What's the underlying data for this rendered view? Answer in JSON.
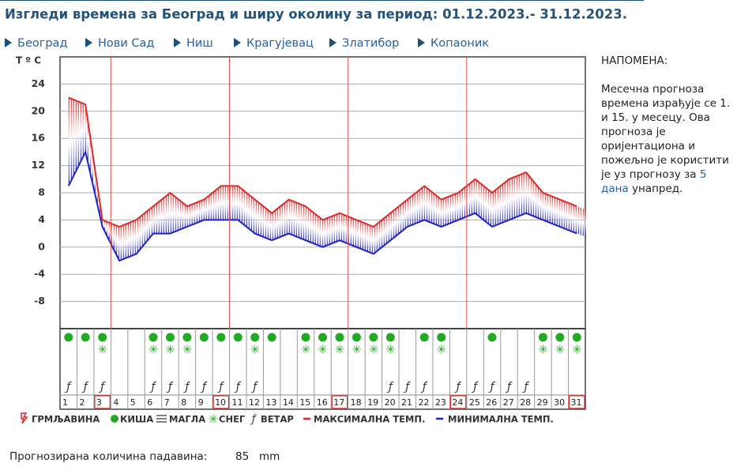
{
  "header": {
    "title": "Изгледи времена за Београд и ширу околину за период: 01.12.2023.- 31.12.2023."
  },
  "nav": [
    "Београд",
    "Нови Сад",
    "Ниш",
    "Крагујевац",
    "Златибор",
    "Копаоник"
  ],
  "note": {
    "title": "НАПОМЕНА:",
    "text": "Месечна прогноза времена израђује се 1. и 15. у месецу. Ова прогноза је оријентациона и пожељно је користити је уз прогнозу за",
    "link": "5 дана",
    "text_end": "унапред."
  },
  "chart_data": {
    "type": "line",
    "y_label": "T º C",
    "categories": [
      "1",
      "2",
      "3",
      "4",
      "5",
      "6",
      "7",
      "8",
      "9",
      "10",
      "11",
      "12",
      "13",
      "14",
      "15",
      "16",
      "17",
      "18",
      "19",
      "20",
      "21",
      "22",
      "23",
      "24",
      "25",
      "26",
      "27",
      "28",
      "29",
      "30",
      "31"
    ],
    "series": [
      {
        "name": "МАКСИМАЛНА ТЕМП.",
        "color": "#e02828",
        "values": [
          22,
          21,
          4,
          3,
          4,
          6,
          8,
          6,
          7,
          9,
          9,
          7,
          5,
          7,
          6,
          4,
          5,
          4,
          3,
          5,
          7,
          9,
          7,
          8,
          10,
          8,
          10,
          11,
          8,
          7,
          6
        ]
      },
      {
        "name": "МИНИМАЛНА ТЕМП.",
        "color": "#2222c0",
        "values": [
          9,
          14,
          3,
          -2,
          -1,
          2,
          2,
          3,
          4,
          4,
          4,
          2,
          1,
          2,
          1,
          0,
          1,
          0,
          -1,
          1,
          3,
          4,
          3,
          4,
          5,
          3,
          4,
          5,
          4,
          3,
          2
        ]
      }
    ],
    "ylim": [
      -12,
      28
    ],
    "yticks": [
      24,
      20,
      16,
      12,
      8,
      4,
      0,
      -4,
      -8
    ],
    "grid": true,
    "rain": [
      true,
      true,
      true,
      false,
      false,
      true,
      true,
      true,
      true,
      true,
      true,
      true,
      true,
      false,
      true,
      true,
      true,
      true,
      true,
      true,
      false,
      true,
      true,
      false,
      false,
      true,
      false,
      false,
      true,
      true,
      true
    ],
    "snow": [
      false,
      false,
      true,
      false,
      false,
      true,
      true,
      true,
      false,
      false,
      false,
      true,
      false,
      false,
      true,
      true,
      true,
      true,
      true,
      true,
      false,
      false,
      true,
      false,
      false,
      false,
      false,
      false,
      true,
      true,
      true
    ],
    "wind": [
      true,
      true,
      true,
      false,
      false,
      true,
      true,
      true,
      true,
      true,
      true,
      true,
      false,
      false,
      false,
      false,
      false,
      false,
      false,
      true,
      true,
      true,
      false,
      true,
      true,
      true,
      true,
      true,
      false,
      false,
      false
    ],
    "boxed": [
      false,
      false,
      true,
      false,
      false,
      false,
      false,
      false,
      false,
      true,
      false,
      false,
      false,
      false,
      false,
      false,
      true,
      false,
      false,
      false,
      false,
      false,
      false,
      true,
      false,
      false,
      false,
      false,
      false,
      false,
      true
    ],
    "legend_items": [
      "ГРМЉАВИНА",
      "КИША",
      "МАГЛА",
      "СНЕГ",
      "ВЕТАР"
    ]
  },
  "precipitation": {
    "label": "Прогнозирана количина падавина:",
    "value": 85,
    "unit": "mm"
  }
}
